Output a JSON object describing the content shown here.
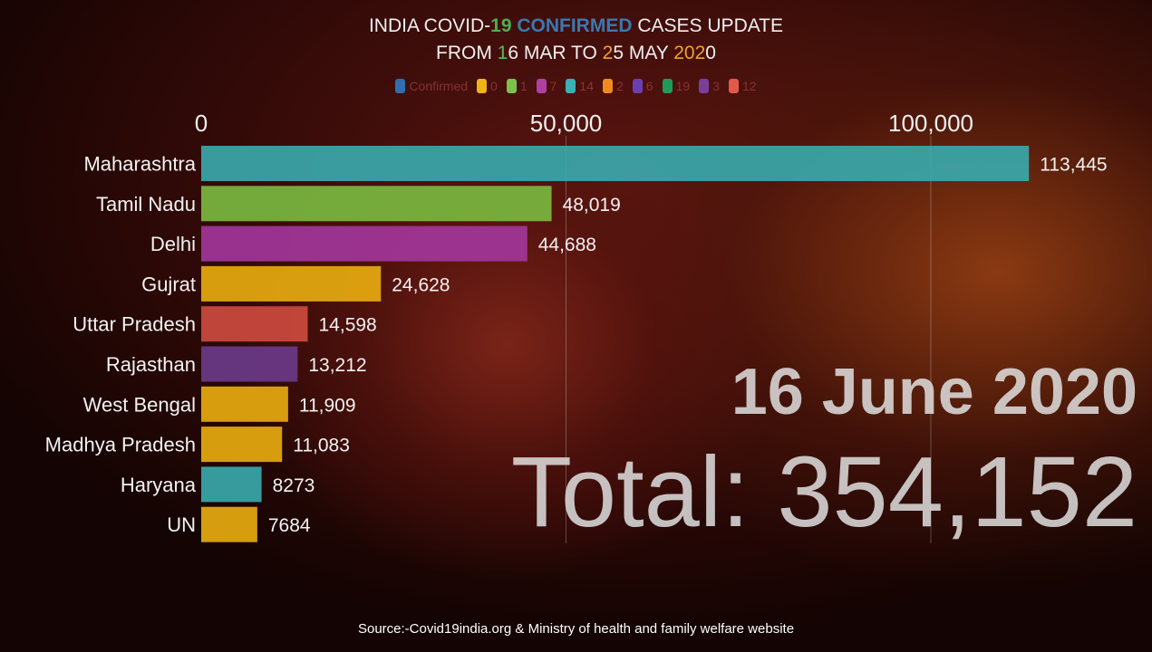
{
  "title_line1": [
    {
      "t": "INDIA COVID-",
      "c": "#f0f0f0"
    },
    {
      "t": "19",
      "c": "#4caf50"
    },
    {
      "t": " ",
      "c": "#f0f0f0"
    },
    {
      "t": "CONFIRMED",
      "c": "#3a78b0"
    },
    {
      "t": " CASES UPDATE",
      "c": "#f0f0f0"
    }
  ],
  "title_line2": [
    {
      "t": "FROM ",
      "c": "#f0f0f0"
    },
    {
      "t": "1",
      "c": "#5cb85c"
    },
    {
      "t": "6 MAR TO ",
      "c": "#f0f0f0"
    },
    {
      "t": "2",
      "c": "#f0a030"
    },
    {
      "t": "5 MAY ",
      "c": "#f0f0f0"
    },
    {
      "t": "202",
      "c": "#f0a030"
    },
    {
      "t": "0",
      "c": "#f0f0f0"
    }
  ],
  "legend": [
    {
      "label": "Confirmed",
      "color": "#2f6fb0"
    },
    {
      "label": "0",
      "color": "#f0b41a"
    },
    {
      "label": "1",
      "color": "#7cc24a"
    },
    {
      "label": "7",
      "color": "#b03fa4"
    },
    {
      "label": "14",
      "color": "#3ab0b4"
    },
    {
      "label": "2",
      "color": "#f08a20"
    },
    {
      "label": "6",
      "color": "#6a3fb0"
    },
    {
      "label": "19",
      "color": "#1f9a5a"
    },
    {
      "label": "3",
      "color": "#7a3f9a"
    },
    {
      "label": "12",
      "color": "#e05a4a"
    }
  ],
  "chart_data": {
    "type": "bar",
    "orientation": "horizontal",
    "categories": [
      "Maharashtra",
      "Tamil Nadu",
      "Delhi",
      "Gujrat",
      "Uttar Pradesh",
      "Rajasthan",
      "West Bengal",
      "Madhya Pradesh",
      "Haryana",
      "UN"
    ],
    "values": [
      113445,
      48019,
      44688,
      24628,
      14598,
      13212,
      11909,
      11083,
      8273,
      7684
    ],
    "value_labels": [
      "113,445",
      "48,019",
      "44,688",
      "24,628",
      "14,598",
      "13,212",
      "11,909",
      "11,083",
      "8273",
      "7684"
    ],
    "colors": [
      "#3aa8ab",
      "#7ab840",
      "#a2369a",
      "#e6aa10",
      "#cc4a3e",
      "#6a3a88",
      "#e6aa10",
      "#e6aa10",
      "#3aa8ab",
      "#e6aa10"
    ],
    "xticks": [
      0,
      50000,
      100000
    ],
    "xtick_labels": [
      "0",
      "50,000",
      "100,000"
    ],
    "xlim": [
      0,
      130000
    ],
    "grid": true,
    "tick_position": "top"
  },
  "date": "16 June 2020",
  "total": "Total: 354,152",
  "source": "Source:-Covid19india.org & Ministry of health and family welfare website"
}
